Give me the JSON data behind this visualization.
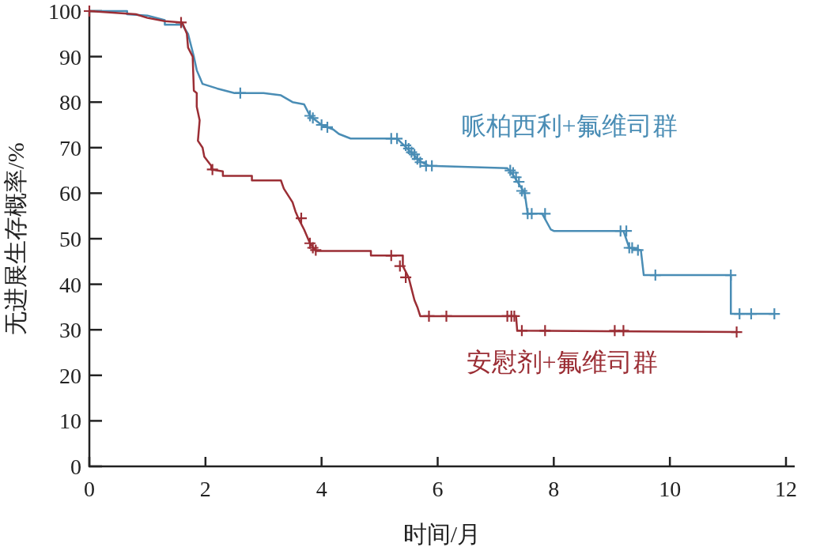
{
  "chart_data": {
    "type": "line",
    "xlabel": "时间/月",
    "ylabel": "无进展生存概率/%",
    "xlim": [
      0,
      12.15
    ],
    "ylim": [
      0,
      100
    ],
    "xticks": [
      0,
      2,
      4,
      6,
      8,
      10,
      12
    ],
    "yticks": [
      0,
      10,
      20,
      30,
      40,
      50,
      60,
      70,
      80,
      90,
      100
    ],
    "grid": false,
    "legend": false,
    "marker": "none",
    "line_style": "solid",
    "series": [
      {
        "name": "哌柏西利+氟维司群",
        "color": "#4a8db5",
        "x": [
          0,
          0.65,
          0.65,
          1.0,
          1.3,
          1.3,
          1.6,
          1.7,
          1.8,
          1.85,
          1.95,
          2.2,
          2.5,
          3.0,
          3.3,
          3.5,
          3.7,
          3.8,
          4.0,
          4.2,
          4.3,
          4.5,
          5.3,
          5.5,
          5.7,
          5.85,
          7.2,
          7.3,
          7.45,
          7.5,
          7.55,
          7.8,
          7.95,
          8.0,
          9.2,
          9.3,
          9.5,
          9.55,
          11.05,
          11.05,
          11.8
        ],
        "values": [
          100,
          100,
          99.3,
          99,
          98,
          97,
          97,
          95,
          90,
          87,
          84,
          83,
          82,
          82,
          81.5,
          80,
          79.5,
          77,
          75,
          74,
          73,
          72,
          72,
          69.5,
          67,
          66,
          65.5,
          64,
          61,
          60,
          55.5,
          55.5,
          52,
          51.7,
          51.7,
          48,
          47.5,
          42,
          42,
          33.5,
          33.5
        ]
      },
      {
        "name": "安慰剂+氟维司群",
        "color": "#9b2e35",
        "x": [
          0,
          0.8,
          1.0,
          1.3,
          1.6,
          1.68,
          1.7,
          1.78,
          1.8,
          1.85,
          1.85,
          1.9,
          1.87,
          1.95,
          1.98,
          2.1,
          2.1,
          2.3,
          2.3,
          2.8,
          2.8,
          3.3,
          3.35,
          3.45,
          3.5,
          3.55,
          3.6,
          3.7,
          3.8,
          3.9,
          4.85,
          4.85,
          5.4,
          5.4,
          5.5,
          5.55,
          5.6,
          5.65,
          5.7,
          7.35,
          7.37,
          11.15
        ],
        "values": [
          100,
          99.3,
          98.5,
          97.8,
          97.5,
          95,
          92,
          90,
          82.5,
          82,
          79,
          76,
          71.5,
          70,
          68,
          66,
          65.2,
          64.8,
          63.8,
          63.8,
          62.8,
          62.8,
          61,
          59,
          58,
          56,
          54.5,
          52,
          49,
          47.3,
          47.3,
          46.3,
          46.3,
          44,
          41.5,
          39,
          36.5,
          35,
          33,
          33,
          29.8,
          29.5
        ]
      },
      {
        "type": "scatter",
        "marker": "cross",
        "color": "#4a8db5",
        "x": [
          2.6,
          3.8,
          3.85,
          4.0,
          4.1,
          5.2,
          5.3,
          5.45,
          5.5,
          5.55,
          5.6,
          5.65,
          5.7,
          5.8,
          5.9,
          7.25,
          7.3,
          7.35,
          7.4,
          7.45,
          7.5,
          7.55,
          7.62,
          7.85,
          9.15,
          9.25,
          9.3,
          9.35,
          9.45,
          9.75,
          11.05,
          11.2,
          11.4,
          11.8
        ],
        "values": [
          82,
          77,
          76.5,
          75,
          74.5,
          72,
          72,
          70.5,
          69.8,
          69,
          68.5,
          67.5,
          66.8,
          66,
          66,
          65,
          64.5,
          63.5,
          62.5,
          60.5,
          60,
          55.5,
          55.5,
          55.5,
          51.7,
          51.7,
          48,
          48,
          47.5,
          42,
          42,
          33.5,
          33.5,
          33.5
        ]
      },
      {
        "type": "scatter",
        "marker": "cross",
        "color": "#9b2e35",
        "x": [
          0,
          1.58,
          2.12,
          3.65,
          3.8,
          3.85,
          3.9,
          5.2,
          5.35,
          5.45,
          5.85,
          6.15,
          7.2,
          7.27,
          7.32,
          7.45,
          7.85,
          9.05,
          9.2,
          11.15
        ],
        "values": [
          100,
          97.5,
          65.2,
          54.5,
          49,
          48,
          47.5,
          46.3,
          44,
          41.5,
          33,
          33,
          33,
          33,
          33,
          29.8,
          29.8,
          29.8,
          29.8,
          29.5
        ]
      }
    ]
  }
}
